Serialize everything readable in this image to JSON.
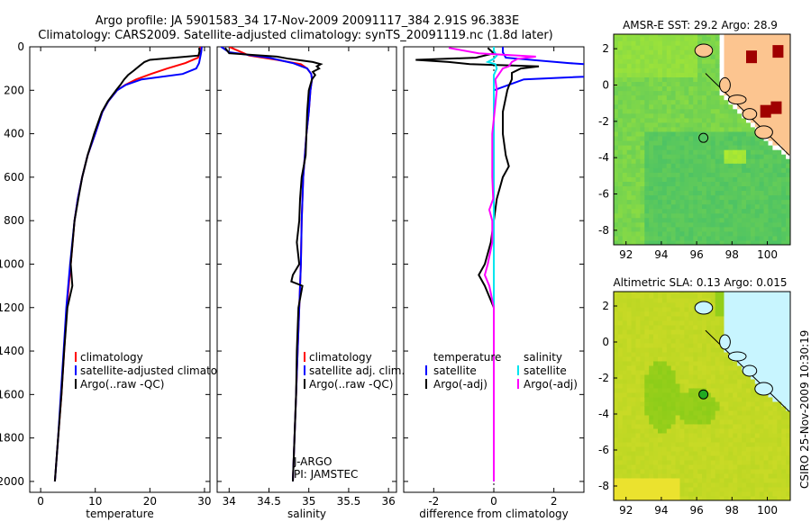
{
  "title_line1": "Argo profile: JA 5901583_34 17-Nov-2009 20091117_384 2.91S 96.383E",
  "title_line2": "Climatology: CARS2009. Satellite-adjusted climatology: synTS_20091119.nc (1.8d later)",
  "credit": "CSIRO 25-Nov-2009 10:30:19",
  "colors": {
    "climatology": "#ff0000",
    "satellite": "#0000ff",
    "argo": "#000000",
    "salinity_satellite": "#00e5ee",
    "salinity_argo": "#ff00ff"
  },
  "chart_data": [
    {
      "type": "line",
      "xlabel": "temperature",
      "xlim": [
        -2,
        31
      ],
      "ylim": [
        2050,
        0
      ],
      "xticks": [
        0,
        10,
        20,
        30
      ],
      "yticks": [
        0,
        200,
        400,
        600,
        800,
        1000,
        1200,
        1400,
        1600,
        1800,
        2000
      ],
      "legend": [
        "climatology",
        "satellite-adjusted climatology",
        "Argo(..raw -QC)"
      ],
      "series": [
        {
          "name": "climatology",
          "color": "#ff0000",
          "depth": [
            0,
            25,
            50,
            75,
            100,
            125,
            150,
            175,
            200,
            250,
            300,
            400,
            500,
            600,
            700,
            800,
            1000,
            1200,
            1400,
            1600,
            1800,
            2000
          ],
          "values": [
            29.2,
            29.1,
            28.8,
            26.5,
            23.2,
            20.2,
            17.5,
            15.5,
            14.0,
            12.4,
            11.3,
            10.0,
            8.6,
            7.6,
            6.8,
            6.2,
            5.5,
            4.8,
            4.3,
            3.8,
            3.2,
            2.6
          ]
        },
        {
          "name": "satellite-adjusted climatology",
          "color": "#0000ff",
          "depth": [
            0,
            25,
            50,
            75,
            100,
            125,
            150,
            175,
            200,
            250,
            300,
            400,
            500,
            600,
            700,
            800,
            1000,
            1200,
            1400,
            1600,
            1800,
            2000
          ],
          "values": [
            29.5,
            29.4,
            29.2,
            29.0,
            28.5,
            26.0,
            18.5,
            15.6,
            14.0,
            12.4,
            11.3,
            10.0,
            8.6,
            7.6,
            6.8,
            6.2,
            5.4,
            4.7,
            4.2,
            3.7,
            3.2,
            2.6
          ]
        },
        {
          "name": "Argo(..raw -QC)",
          "color": "#000000",
          "depth": [
            5,
            20,
            40,
            60,
            70,
            90,
            110,
            130,
            150,
            175,
            200,
            250,
            300,
            400,
            500,
            600,
            700,
            800,
            1000,
            1100,
            1200,
            1400,
            1600,
            1800,
            2000
          ],
          "values": [
            29.0,
            29.1,
            28.9,
            20.0,
            19.0,
            18.0,
            17.0,
            16.0,
            15.3,
            14.6,
            13.8,
            12.3,
            11.2,
            9.8,
            8.6,
            7.6,
            6.9,
            6.2,
            5.5,
            5.8,
            4.9,
            4.3,
            3.8,
            3.2,
            2.6
          ]
        }
      ]
    },
    {
      "type": "line",
      "xlabel": "salinity",
      "xlim": [
        33.85,
        36.1
      ],
      "ylim": [
        2050,
        0
      ],
      "xticks": [
        34,
        34.5,
        35,
        35.5,
        36
      ],
      "legend": [
        "climatology",
        "satellite adj. clim.",
        "Argo(..raw -QC)"
      ],
      "annotations": [
        "J-ARGO",
        "PI: JAMSTEC"
      ],
      "series": [
        {
          "name": "climatology",
          "color": "#ff0000",
          "depth": [
            0,
            40,
            60,
            80,
            100,
            125,
            150,
            200,
            300,
            400,
            500,
            600,
            800,
            1000,
            1200,
            1400,
            1600,
            1800,
            2000
          ],
          "values": [
            34.0,
            34.25,
            34.6,
            34.9,
            34.98,
            35.03,
            35.04,
            35.02,
            35.0,
            34.97,
            34.95,
            34.93,
            34.91,
            34.9,
            34.88,
            34.86,
            34.84,
            34.82,
            34.8
          ]
        },
        {
          "name": "satellite adj. clim.",
          "color": "#0000ff",
          "depth": [
            0,
            25,
            50,
            75,
            100,
            125,
            150,
            200,
            300,
            400,
            500,
            600,
            800,
            1000,
            1200,
            1400,
            1600,
            1800,
            2000
          ],
          "values": [
            33.9,
            34.0,
            34.5,
            34.8,
            34.98,
            35.03,
            35.04,
            35.02,
            35.0,
            34.97,
            34.95,
            34.93,
            34.91,
            34.9,
            34.88,
            34.86,
            34.84,
            34.82,
            34.8
          ]
        },
        {
          "name": "Argo(..raw -QC)",
          "color": "#000000",
          "depth": [
            5,
            30,
            45,
            55,
            70,
            80,
            90,
            100,
            115,
            130,
            150,
            200,
            300,
            500,
            600,
            700,
            800,
            900,
            1000,
            1050,
            1080,
            1100,
            1200,
            1400,
            1600,
            1800,
            2000
          ],
          "values": [
            33.95,
            34.0,
            34.6,
            34.75,
            35.05,
            35.15,
            35.1,
            35.13,
            35.05,
            35.08,
            35.04,
            35.0,
            34.98,
            34.96,
            34.91,
            34.89,
            34.88,
            34.85,
            34.88,
            34.8,
            34.78,
            34.92,
            34.87,
            34.85,
            34.84,
            34.82,
            34.8
          ]
        }
      ]
    },
    {
      "type": "line",
      "xlabel": "difference from climatology",
      "xlim": [
        -3.0,
        3.0
      ],
      "ylim": [
        2050,
        0
      ],
      "xticks": [
        -2,
        0,
        2
      ],
      "legend": [
        "temperature",
        "satellite",
        "Argo(-adj)",
        "salinity",
        "satellite",
        "Argo(-adj)"
      ],
      "series": [
        {
          "name": "temperature satellite",
          "color": "#0000ff",
          "depth": [
            0,
            25,
            50,
            75,
            100,
            125,
            150,
            200,
            400,
            2000
          ],
          "values": [
            0.3,
            0.3,
            0.4,
            2.5,
            5.0,
            5.0,
            1.0,
            0.0,
            0.0,
            0.0
          ]
        },
        {
          "name": "temperature Argo(-adj)",
          "color": "#000000",
          "depth": [
            5,
            30,
            50,
            60,
            70,
            80,
            90,
            100,
            120,
            150,
            180,
            200,
            300,
            400,
            500,
            550,
            600,
            700,
            800,
            900,
            1000,
            1050,
            1100,
            1200,
            1400,
            1600,
            1800,
            2000
          ],
          "values": [
            -0.2,
            0.0,
            -0.6,
            -2.6,
            -1.5,
            -0.8,
            1.5,
            0.9,
            0.6,
            0.6,
            0.5,
            0.45,
            0.3,
            0.3,
            0.4,
            0.5,
            0.3,
            0.1,
            0.0,
            -0.1,
            -0.3,
            -0.5,
            -0.3,
            0.0,
            0.0,
            0.0,
            0.0,
            0.0
          ]
        },
        {
          "name": "salinity satellite",
          "color": "#00e5ee",
          "depth": [
            0,
            20,
            40,
            55,
            70,
            80,
            100,
            130,
            200,
            400,
            2000
          ],
          "values": [
            0.0,
            0.0,
            0.1,
            0.0,
            -0.2,
            0.05,
            0.1,
            0.0,
            0.0,
            0.0,
            0.0
          ]
        },
        {
          "name": "salinity Argo(-adj)",
          "color": "#ff00ff",
          "depth": [
            5,
            30,
            45,
            55,
            70,
            90,
            100,
            150,
            200,
            400,
            600,
            700,
            750,
            800,
            900,
            1000,
            1050,
            1100,
            1200,
            1400,
            1600,
            1800,
            2000
          ],
          "values": [
            -1.5,
            -0.5,
            1.4,
            0.8,
            0.6,
            0.5,
            0.3,
            0.05,
            0.1,
            -0.05,
            -0.05,
            -0.02,
            -0.15,
            -0.05,
            -0.05,
            -0.2,
            -0.3,
            -0.15,
            0.0,
            0.0,
            0.0,
            0.0,
            0.0
          ]
        }
      ]
    },
    {
      "type": "heatmap",
      "title": "AMSR-E SST: 29.2 Argo: 28.9",
      "xlim": [
        91.3,
        101.3
      ],
      "ylim": [
        -8.8,
        2.8
      ],
      "xticks": [
        92,
        94,
        96,
        98,
        100
      ],
      "yticks": [
        -8,
        -6,
        -4,
        -2,
        0,
        2
      ],
      "marker": {
        "lon": 96.383,
        "lat": -2.91
      }
    },
    {
      "type": "heatmap",
      "title": "Altimetric SLA: 0.13 Argo: 0.015",
      "xlim": [
        91.3,
        101.3
      ],
      "ylim": [
        -8.8,
        2.8
      ],
      "xticks": [
        92,
        94,
        96,
        98,
        100
      ],
      "yticks": [
        -8,
        -6,
        -4,
        -2,
        0,
        2
      ],
      "marker": {
        "lon": 96.383,
        "lat": -2.91
      }
    }
  ]
}
